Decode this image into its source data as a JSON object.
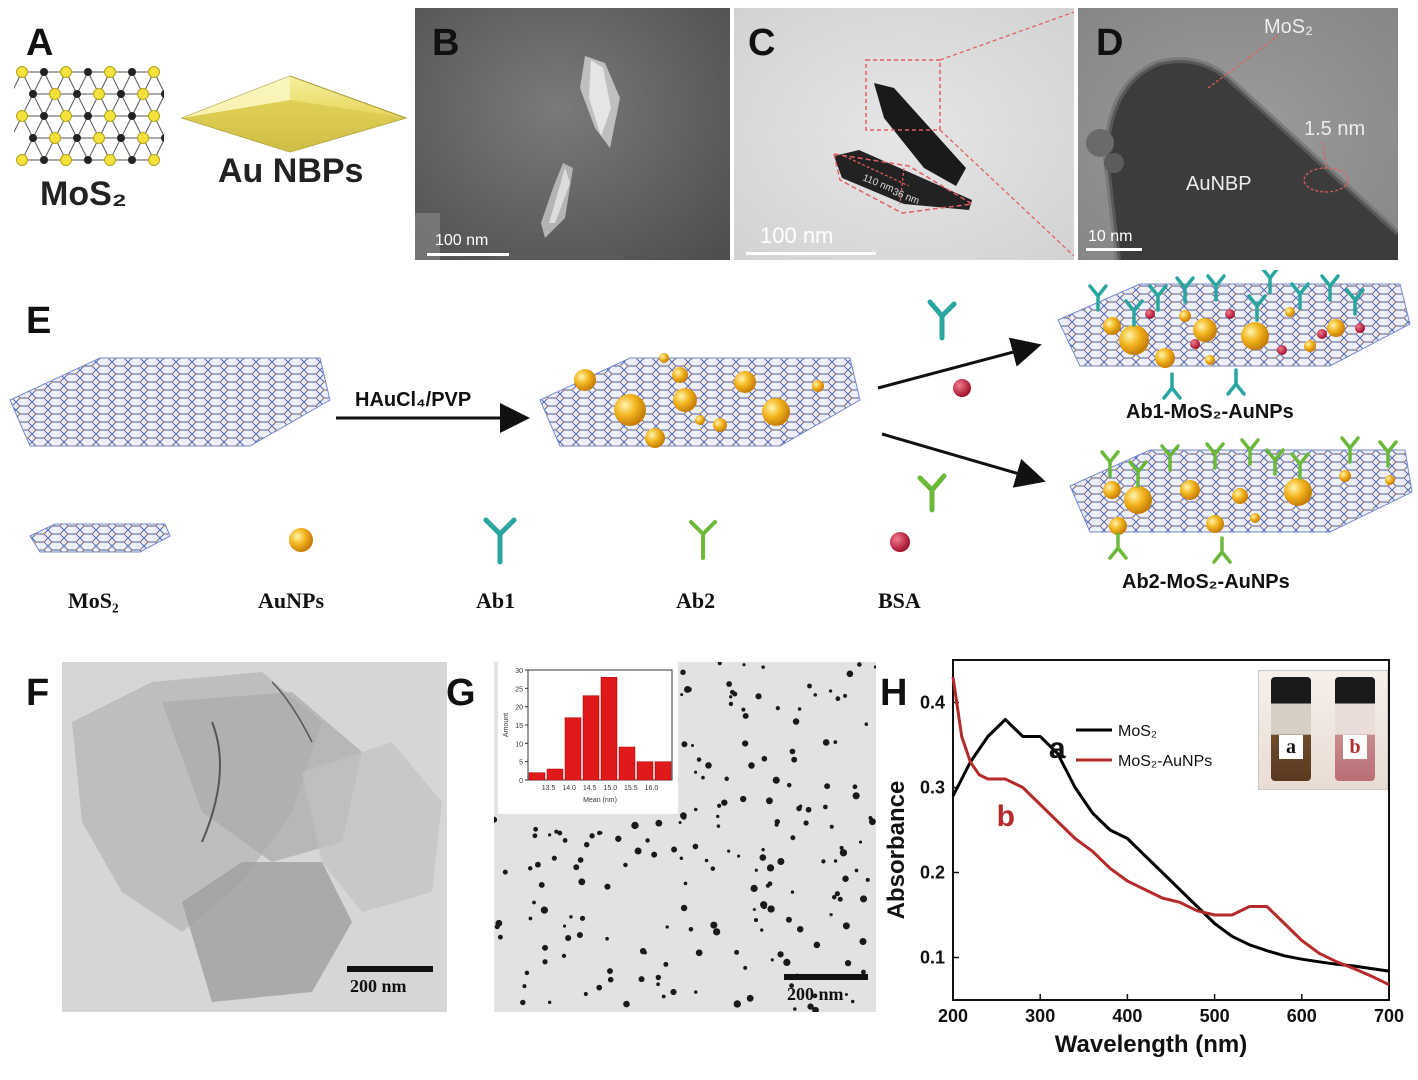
{
  "panels": {
    "A": {
      "letter": "A",
      "label_mos2": "MoS₂",
      "label_au": "Au NBPs"
    },
    "B": {
      "letter": "B",
      "scale": "100 nm"
    },
    "C": {
      "letter": "C",
      "scale": "100 nm",
      "dim1": "110 nm",
      "dim2": "36 nm"
    },
    "D": {
      "letter": "D",
      "scale": "10 nm",
      "label_mos2": "MoS₂",
      "label_thickness": "1.5 nm",
      "label_core": "AuNBP"
    },
    "E": {
      "letter": "E",
      "arrow_label": "HAuCl₄/PVP",
      "product1": "Ab1-MoS₂-AuNPs",
      "product2": "Ab2-MoS₂-AuNPs",
      "legend": [
        "MoS₂",
        "AuNPs",
        "Ab1",
        "Ab2",
        "BSA"
      ]
    },
    "F": {
      "letter": "F",
      "scale": "200 nm"
    },
    "G": {
      "letter": "G",
      "scale": "200 nm",
      "inset_ylabel": "Amount",
      "inset_xlabel": "Mean (nm)"
    },
    "H": {
      "letter": "H"
    }
  },
  "colors": {
    "mos2_line": "#000000",
    "auNP_line": "#b52a2a",
    "ab1": "#2aa6a0",
    "ab2": "#6cb83a",
    "bsa": "#c8234a",
    "gold": "#f0b020"
  },
  "chart_data": [
    {
      "type": "line",
      "panel": "H",
      "xlabel": "Wavelength (nm)",
      "ylabel": "Absorbance",
      "xlim": [
        200,
        700
      ],
      "ylim": [
        0.05,
        0.45
      ],
      "xticks": [
        200,
        300,
        400,
        500,
        600,
        700
      ],
      "yticks": [
        0.1,
        0.2,
        0.3,
        0.4
      ],
      "legend_position": "top-right",
      "series": [
        {
          "name": "MoS₂",
          "label": "a",
          "color": "#000000",
          "x": [
            200,
            220,
            240,
            260,
            280,
            300,
            320,
            340,
            360,
            380,
            400,
            420,
            440,
            460,
            480,
            500,
            520,
            540,
            560,
            580,
            600,
            620,
            640,
            660,
            680,
            700
          ],
          "y": [
            0.29,
            0.33,
            0.36,
            0.38,
            0.36,
            0.36,
            0.34,
            0.3,
            0.27,
            0.25,
            0.24,
            0.22,
            0.2,
            0.18,
            0.16,
            0.14,
            0.125,
            0.115,
            0.108,
            0.102,
            0.098,
            0.095,
            0.092,
            0.09,
            0.087,
            0.084
          ]
        },
        {
          "name": "MoS₂-AuNPs",
          "label": "b",
          "color": "#b52a2a",
          "x": [
            200,
            210,
            220,
            230,
            240,
            260,
            280,
            300,
            320,
            340,
            360,
            380,
            400,
            420,
            440,
            460,
            480,
            500,
            520,
            540,
            560,
            580,
            600,
            620,
            640,
            660,
            680,
            700
          ],
          "y": [
            0.43,
            0.36,
            0.33,
            0.315,
            0.31,
            0.31,
            0.3,
            0.28,
            0.26,
            0.24,
            0.225,
            0.205,
            0.19,
            0.18,
            0.17,
            0.165,
            0.155,
            0.15,
            0.15,
            0.16,
            0.16,
            0.14,
            0.12,
            0.105,
            0.095,
            0.087,
            0.078,
            0.068
          ]
        }
      ]
    },
    {
      "type": "bar",
      "panel": "G-inset",
      "xlabel": "Mean (nm)",
      "ylabel": "Amount",
      "categories": [
        "13.0",
        "13.5",
        "14.0",
        "14.5",
        "15.0",
        "15.5",
        "16.0",
        "16.5"
      ],
      "xtick_labels": [
        "13.5",
        "14.0",
        "14.5",
        "15.0",
        "15.5",
        "16.0"
      ],
      "values": [
        2,
        3,
        17,
        23,
        28,
        9,
        5,
        5
      ],
      "yticks": [
        0,
        5,
        10,
        15,
        20,
        25,
        30
      ],
      "ylim": [
        0,
        30
      ]
    }
  ]
}
